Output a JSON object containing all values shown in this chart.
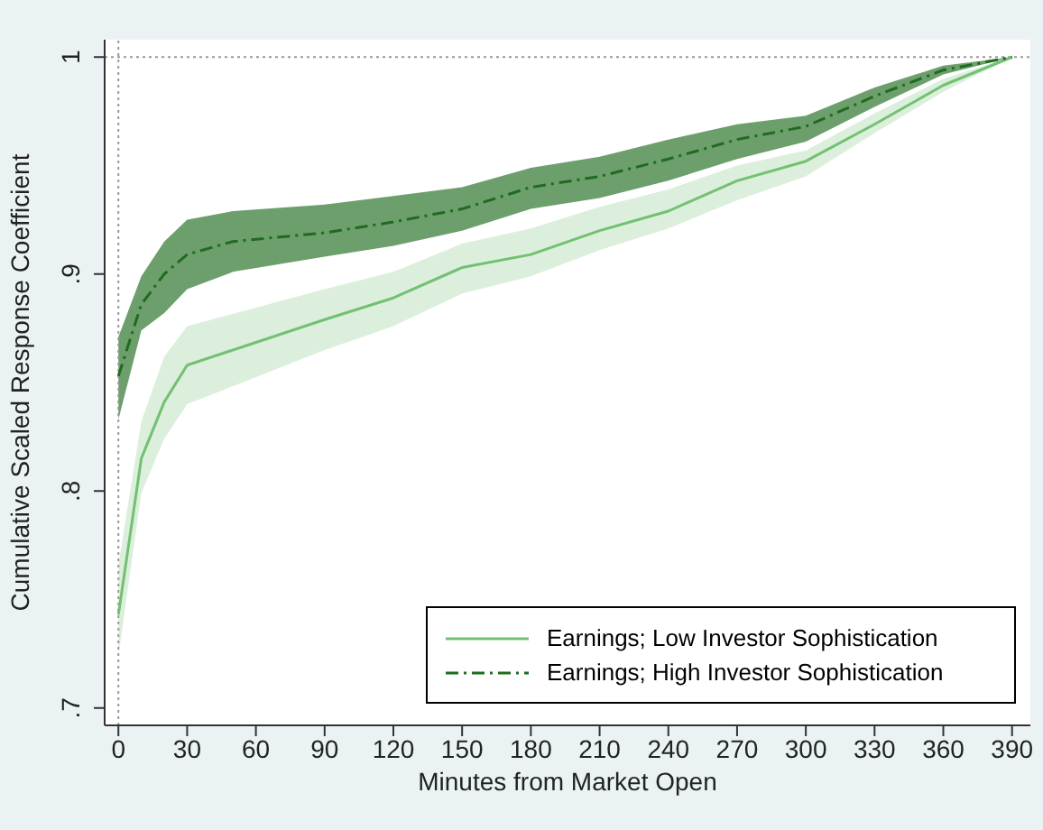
{
  "chart_data": {
    "type": "line",
    "xlabel": "Minutes from Market Open",
    "ylabel": "Cumulative Scaled Response Coefficient",
    "xlim": [
      -6,
      398
    ],
    "xticks": [
      0,
      30,
      60,
      90,
      120,
      150,
      180,
      210,
      240,
      270,
      300,
      330,
      360,
      390
    ],
    "ylim": [
      0.692,
      1.008
    ],
    "yticks": [
      {
        "value": 0.7,
        "label": ".7"
      },
      {
        "value": 0.8,
        "label": ".8"
      },
      {
        "value": 0.9,
        "label": ".9"
      },
      1
    ],
    "grid": false,
    "legend": "bottom right",
    "ref_lines": [
      {
        "axis": "y",
        "value": 1,
        "color": "#999999",
        "line_style": "dotted"
      },
      {
        "axis": "x",
        "value": 0,
        "color": "#999999",
        "line_style": "dotted"
      }
    ],
    "series": [
      {
        "name": "Earnings; Low Investor Sophistication",
        "color": "#72c172",
        "line_style": "solid",
        "x": [
          0,
          10,
          20,
          30,
          90,
          120,
          150,
          180,
          210,
          240,
          270,
          300,
          330,
          360,
          390
        ],
        "values": [
          0.743,
          0.815,
          0.841,
          0.858,
          0.879,
          0.889,
          0.903,
          0.909,
          0.92,
          0.929,
          0.943,
          0.952,
          0.969,
          0.987,
          1
        ],
        "lower": [
          0.724,
          0.799,
          0.824,
          0.84,
          0.865,
          0.876,
          0.891,
          0.899,
          0.911,
          0.921,
          0.934,
          0.945,
          0.965,
          0.984,
          1
        ],
        "upper": [
          0.766,
          0.832,
          0.862,
          0.876,
          0.893,
          0.901,
          0.914,
          0.921,
          0.931,
          0.939,
          0.95,
          0.957,
          0.974,
          0.99,
          1
        ]
      },
      {
        "name": "Earnings; High Investor Sophistication",
        "color": "#1f6b1f",
        "line_style": "dashed",
        "x": [
          0,
          10,
          20,
          30,
          50,
          90,
          120,
          150,
          180,
          210,
          240,
          270,
          300,
          330,
          360,
          390
        ],
        "values": [
          0.853,
          0.886,
          0.9,
          0.909,
          0.915,
          0.919,
          0.924,
          0.93,
          0.94,
          0.945,
          0.953,
          0.962,
          0.968,
          0.982,
          0.994,
          1
        ],
        "lower": [
          0.833,
          0.874,
          0.882,
          0.893,
          0.901,
          0.908,
          0.913,
          0.92,
          0.93,
          0.935,
          0.943,
          0.953,
          0.961,
          0.977,
          0.992,
          1
        ],
        "upper": [
          0.871,
          0.899,
          0.915,
          0.925,
          0.929,
          0.932,
          0.936,
          0.94,
          0.949,
          0.954,
          0.962,
          0.969,
          0.973,
          0.986,
          0.996,
          1
        ]
      }
    ]
  }
}
